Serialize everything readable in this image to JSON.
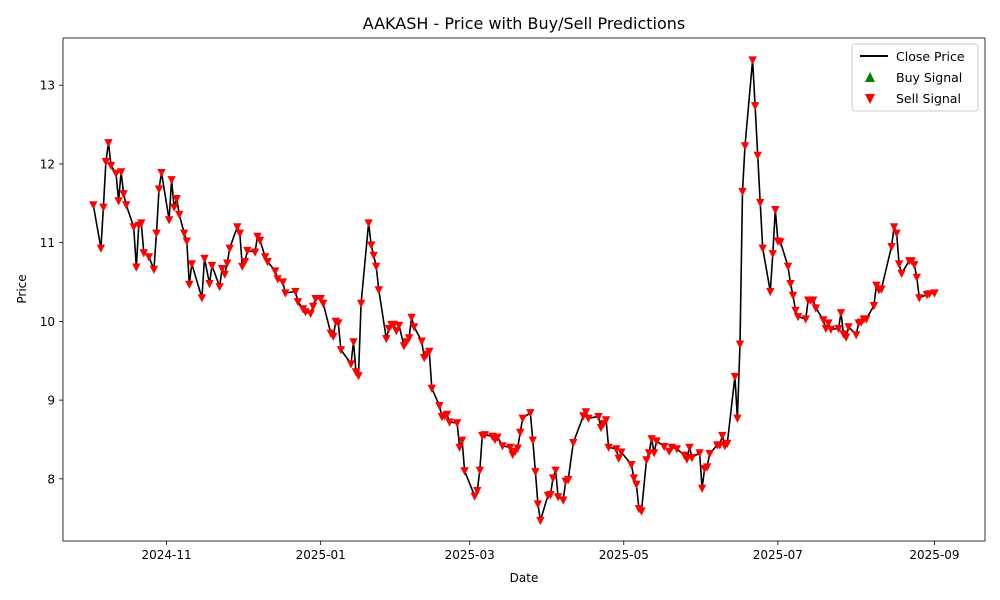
{
  "chart_data": {
    "type": "line",
    "title": "AAKASH - Price with Buy/Sell Predictions",
    "xlabel": "Date",
    "ylabel": "Price",
    "x_range": [
      "2024-09-21",
      "2025-09-21"
    ],
    "ylim": [
      7.21,
      13.6
    ],
    "x_ticks": [
      {
        "date": "2024-11-01",
        "label": "2024-11"
      },
      {
        "date": "2025-01-01",
        "label": "2025-01"
      },
      {
        "date": "2025-03-01",
        "label": "2025-03"
      },
      {
        "date": "2025-05-01",
        "label": "2025-05"
      },
      {
        "date": "2025-07-01",
        "label": "2025-07"
      },
      {
        "date": "2025-09-01",
        "label": "2025-09"
      }
    ],
    "y_ticks": [
      8,
      9,
      10,
      11,
      12,
      13
    ],
    "grid": false,
    "legend": {
      "position": "top-right",
      "entries": [
        "Close Price",
        "Buy Signal",
        "Sell Signal"
      ]
    },
    "colors": {
      "close": "#000000",
      "buy": "#008000",
      "sell": "#ff0000"
    },
    "series": [
      {
        "name": "Close Price",
        "points": [
          [
            "2024-10-03",
            11.48
          ],
          [
            "2024-10-06",
            10.93
          ],
          [
            "2024-10-07",
            11.45
          ],
          [
            "2024-10-08",
            12.03
          ],
          [
            "2024-10-09",
            12.27
          ],
          [
            "2024-10-10",
            11.98
          ],
          [
            "2024-10-12",
            11.88
          ],
          [
            "2024-10-13",
            11.53
          ],
          [
            "2024-10-14",
            11.9
          ],
          [
            "2024-10-15",
            11.62
          ],
          [
            "2024-10-16",
            11.48
          ],
          [
            "2024-10-19",
            11.2
          ],
          [
            "2024-10-20",
            10.69
          ],
          [
            "2024-10-21",
            11.22
          ],
          [
            "2024-10-22",
            11.25
          ],
          [
            "2024-10-23",
            10.87
          ],
          [
            "2024-10-25",
            10.82
          ],
          [
            "2024-10-27",
            10.66
          ],
          [
            "2024-10-28",
            11.12
          ],
          [
            "2024-10-29",
            11.68
          ],
          [
            "2024-10-30",
            11.89
          ],
          [
            "2024-11-02",
            11.29
          ],
          [
            "2024-11-03",
            11.8
          ],
          [
            "2024-11-04",
            11.45
          ],
          [
            "2024-11-05",
            11.56
          ],
          [
            "2024-11-06",
            11.36
          ],
          [
            "2024-11-08",
            11.12
          ],
          [
            "2024-11-09",
            11.02
          ],
          [
            "2024-11-10",
            10.47
          ],
          [
            "2024-11-11",
            10.73
          ],
          [
            "2024-11-15",
            10.3
          ],
          [
            "2024-11-16",
            10.8
          ],
          [
            "2024-11-18",
            10.48
          ],
          [
            "2024-11-19",
            10.71
          ],
          [
            "2024-11-22",
            10.44
          ],
          [
            "2024-11-23",
            10.67
          ],
          [
            "2024-11-24",
            10.6
          ],
          [
            "2024-11-25",
            10.74
          ],
          [
            "2024-11-26",
            10.93
          ],
          [
            "2024-11-29",
            11.2
          ],
          [
            "2024-11-30",
            11.12
          ],
          [
            "2024-12-01",
            10.7
          ],
          [
            "2024-12-02",
            10.76
          ],
          [
            "2024-12-03",
            10.9
          ],
          [
            "2024-12-06",
            10.88
          ],
          [
            "2024-12-07",
            11.08
          ],
          [
            "2024-12-08",
            11.03
          ],
          [
            "2024-12-10",
            10.82
          ],
          [
            "2024-12-11",
            10.76
          ],
          [
            "2024-12-14",
            10.64
          ],
          [
            "2024-12-15",
            10.54
          ],
          [
            "2024-12-17",
            10.5
          ],
          [
            "2024-12-18",
            10.36
          ],
          [
            "2024-12-22",
            10.38
          ],
          [
            "2024-12-23",
            10.25
          ],
          [
            "2024-12-25",
            10.16
          ],
          [
            "2024-12-26",
            10.12
          ],
          [
            "2024-12-28",
            10.1
          ],
          [
            "2024-12-29",
            10.19
          ],
          [
            "2024-12-30",
            10.29
          ],
          [
            "2025-01-01",
            10.29
          ],
          [
            "2025-01-02",
            10.23
          ],
          [
            "2025-01-05",
            9.85
          ],
          [
            "2025-01-06",
            9.81
          ],
          [
            "2025-01-07",
            10.0
          ],
          [
            "2025-01-08",
            9.98
          ],
          [
            "2025-01-09",
            9.64
          ],
          [
            "2025-01-13",
            9.46
          ],
          [
            "2025-01-14",
            9.74
          ],
          [
            "2025-01-15",
            9.36
          ],
          [
            "2025-01-16",
            9.31
          ],
          [
            "2025-01-17",
            10.23
          ],
          [
            "2025-01-20",
            11.25
          ],
          [
            "2025-01-21",
            10.97
          ],
          [
            "2025-01-22",
            10.84
          ],
          [
            "2025-01-23",
            10.7
          ],
          [
            "2025-01-24",
            10.4
          ],
          [
            "2025-01-27",
            9.78
          ],
          [
            "2025-01-28",
            9.91
          ],
          [
            "2025-01-29",
            9.96
          ],
          [
            "2025-01-30",
            9.96
          ],
          [
            "2025-01-31",
            9.88
          ],
          [
            "2025-02-01",
            9.95
          ],
          [
            "2025-02-03",
            9.69
          ],
          [
            "2025-02-04",
            9.74
          ],
          [
            "2025-02-05",
            9.79
          ],
          [
            "2025-02-06",
            10.05
          ],
          [
            "2025-02-07",
            9.93
          ],
          [
            "2025-02-10",
            9.75
          ],
          [
            "2025-02-11",
            9.54
          ],
          [
            "2025-02-12",
            9.58
          ],
          [
            "2025-02-13",
            9.62
          ],
          [
            "2025-02-14",
            9.15
          ],
          [
            "2025-02-17",
            8.93
          ],
          [
            "2025-02-18",
            8.79
          ],
          [
            "2025-02-19",
            8.8
          ],
          [
            "2025-02-20",
            8.82
          ],
          [
            "2025-02-21",
            8.72
          ],
          [
            "2025-02-24",
            8.71
          ],
          [
            "2025-02-25",
            8.4
          ],
          [
            "2025-02-26",
            8.49
          ],
          [
            "2025-02-27",
            8.1
          ],
          [
            "2025-03-03",
            7.78
          ],
          [
            "2025-03-04",
            7.85
          ],
          [
            "2025-03-05",
            8.11
          ],
          [
            "2025-03-06",
            8.55
          ],
          [
            "2025-03-07",
            8.56
          ],
          [
            "2025-03-10",
            8.54
          ],
          [
            "2025-03-11",
            8.5
          ],
          [
            "2025-03-12",
            8.53
          ],
          [
            "2025-03-14",
            8.42
          ],
          [
            "2025-03-17",
            8.4
          ],
          [
            "2025-03-18",
            8.31
          ],
          [
            "2025-03-19",
            8.35
          ],
          [
            "2025-03-20",
            8.39
          ],
          [
            "2025-03-21",
            8.59
          ],
          [
            "2025-03-22",
            8.77
          ],
          [
            "2025-03-25",
            8.84
          ],
          [
            "2025-03-26",
            8.49
          ],
          [
            "2025-03-27",
            8.09
          ],
          [
            "2025-03-28",
            7.68
          ],
          [
            "2025-03-29",
            7.47
          ],
          [
            "2025-04-01",
            7.79
          ],
          [
            "2025-04-02",
            7.8
          ],
          [
            "2025-04-03",
            8.01
          ],
          [
            "2025-04-04",
            8.11
          ],
          [
            "2025-04-05",
            7.77
          ],
          [
            "2025-04-07",
            7.73
          ],
          [
            "2025-04-08",
            7.97
          ],
          [
            "2025-04-09",
            7.99
          ],
          [
            "2025-04-11",
            8.46
          ],
          [
            "2025-04-15",
            8.8
          ],
          [
            "2025-04-16",
            8.85
          ],
          [
            "2025-04-17",
            8.77
          ],
          [
            "2025-04-21",
            8.79
          ],
          [
            "2025-04-22",
            8.65
          ],
          [
            "2025-04-23",
            8.7
          ],
          [
            "2025-04-24",
            8.75
          ],
          [
            "2025-04-25",
            8.4
          ],
          [
            "2025-04-28",
            8.38
          ],
          [
            "2025-04-29",
            8.26
          ],
          [
            "2025-04-30",
            8.34
          ],
          [
            "2025-05-04",
            8.18
          ],
          [
            "2025-05-05",
            8.01
          ],
          [
            "2025-05-06",
            7.93
          ],
          [
            "2025-05-07",
            7.62
          ],
          [
            "2025-05-08",
            7.59
          ],
          [
            "2025-05-10",
            8.24
          ],
          [
            "2025-05-11",
            8.33
          ],
          [
            "2025-05-12",
            8.51
          ],
          [
            "2025-05-13",
            8.33
          ],
          [
            "2025-05-14",
            8.48
          ],
          [
            "2025-05-17",
            8.41
          ],
          [
            "2025-05-19",
            8.35
          ],
          [
            "2025-05-20",
            8.4
          ],
          [
            "2025-05-22",
            8.38
          ],
          [
            "2025-05-25",
            8.3
          ],
          [
            "2025-05-26",
            8.25
          ],
          [
            "2025-05-27",
            8.4
          ],
          [
            "2025-05-28",
            8.27
          ],
          [
            "2025-05-31",
            8.33
          ],
          [
            "2025-06-01",
            7.88
          ],
          [
            "2025-06-02",
            8.13
          ],
          [
            "2025-06-03",
            8.15
          ],
          [
            "2025-06-04",
            8.32
          ],
          [
            "2025-06-07",
            8.43
          ],
          [
            "2025-06-08",
            8.43
          ],
          [
            "2025-06-09",
            8.55
          ],
          [
            "2025-06-10",
            8.42
          ],
          [
            "2025-06-11",
            8.45
          ],
          [
            "2025-06-14",
            9.3
          ],
          [
            "2025-06-15",
            8.77
          ],
          [
            "2025-06-16",
            9.71
          ],
          [
            "2025-06-17",
            11.65
          ],
          [
            "2025-06-18",
            12.23
          ],
          [
            "2025-06-21",
            13.32
          ],
          [
            "2025-06-22",
            12.74
          ],
          [
            "2025-06-23",
            12.11
          ],
          [
            "2025-06-24",
            11.51
          ],
          [
            "2025-06-25",
            10.93
          ],
          [
            "2025-06-28",
            10.38
          ],
          [
            "2025-06-29",
            10.86
          ],
          [
            "2025-06-30",
            11.42
          ],
          [
            "2025-07-01",
            11.02
          ],
          [
            "2025-07-02",
            11.01
          ],
          [
            "2025-07-05",
            10.7
          ],
          [
            "2025-07-06",
            10.48
          ],
          [
            "2025-07-07",
            10.33
          ],
          [
            "2025-07-08",
            10.14
          ],
          [
            "2025-07-09",
            10.06
          ],
          [
            "2025-07-12",
            10.03
          ],
          [
            "2025-07-13",
            10.27
          ],
          [
            "2025-07-14",
            10.27
          ],
          [
            "2025-07-15",
            10.27
          ],
          [
            "2025-07-16",
            10.17
          ],
          [
            "2025-07-19",
            10.02
          ],
          [
            "2025-07-20",
            9.91
          ],
          [
            "2025-07-21",
            9.98
          ],
          [
            "2025-07-22",
            9.9
          ],
          [
            "2025-07-25",
            9.91
          ],
          [
            "2025-07-26",
            10.11
          ],
          [
            "2025-07-27",
            9.84
          ],
          [
            "2025-07-28",
            9.8
          ],
          [
            "2025-07-29",
            9.93
          ],
          [
            "2025-08-01",
            9.83
          ],
          [
            "2025-08-02",
            9.98
          ],
          [
            "2025-08-03",
            9.99
          ],
          [
            "2025-08-04",
            10.03
          ],
          [
            "2025-08-05",
            10.03
          ],
          [
            "2025-08-08",
            10.2
          ],
          [
            "2025-08-09",
            10.46
          ],
          [
            "2025-08-10",
            10.4
          ],
          [
            "2025-08-11",
            10.41
          ],
          [
            "2025-08-15",
            10.95
          ],
          [
            "2025-08-16",
            11.2
          ],
          [
            "2025-08-17",
            11.12
          ],
          [
            "2025-08-18",
            10.73
          ],
          [
            "2025-08-19",
            10.61
          ],
          [
            "2025-08-22",
            10.77
          ],
          [
            "2025-08-23",
            10.77
          ],
          [
            "2025-08-24",
            10.72
          ],
          [
            "2025-08-25",
            10.56
          ],
          [
            "2025-08-26",
            10.3
          ],
          [
            "2025-08-29",
            10.34
          ],
          [
            "2025-08-30",
            10.35
          ],
          [
            "2025-09-01",
            10.36
          ]
        ]
      },
      {
        "name": "Buy Signal",
        "points": []
      },
      {
        "name": "Sell Signal",
        "points": "same dates and prices as Close Price"
      }
    ]
  }
}
